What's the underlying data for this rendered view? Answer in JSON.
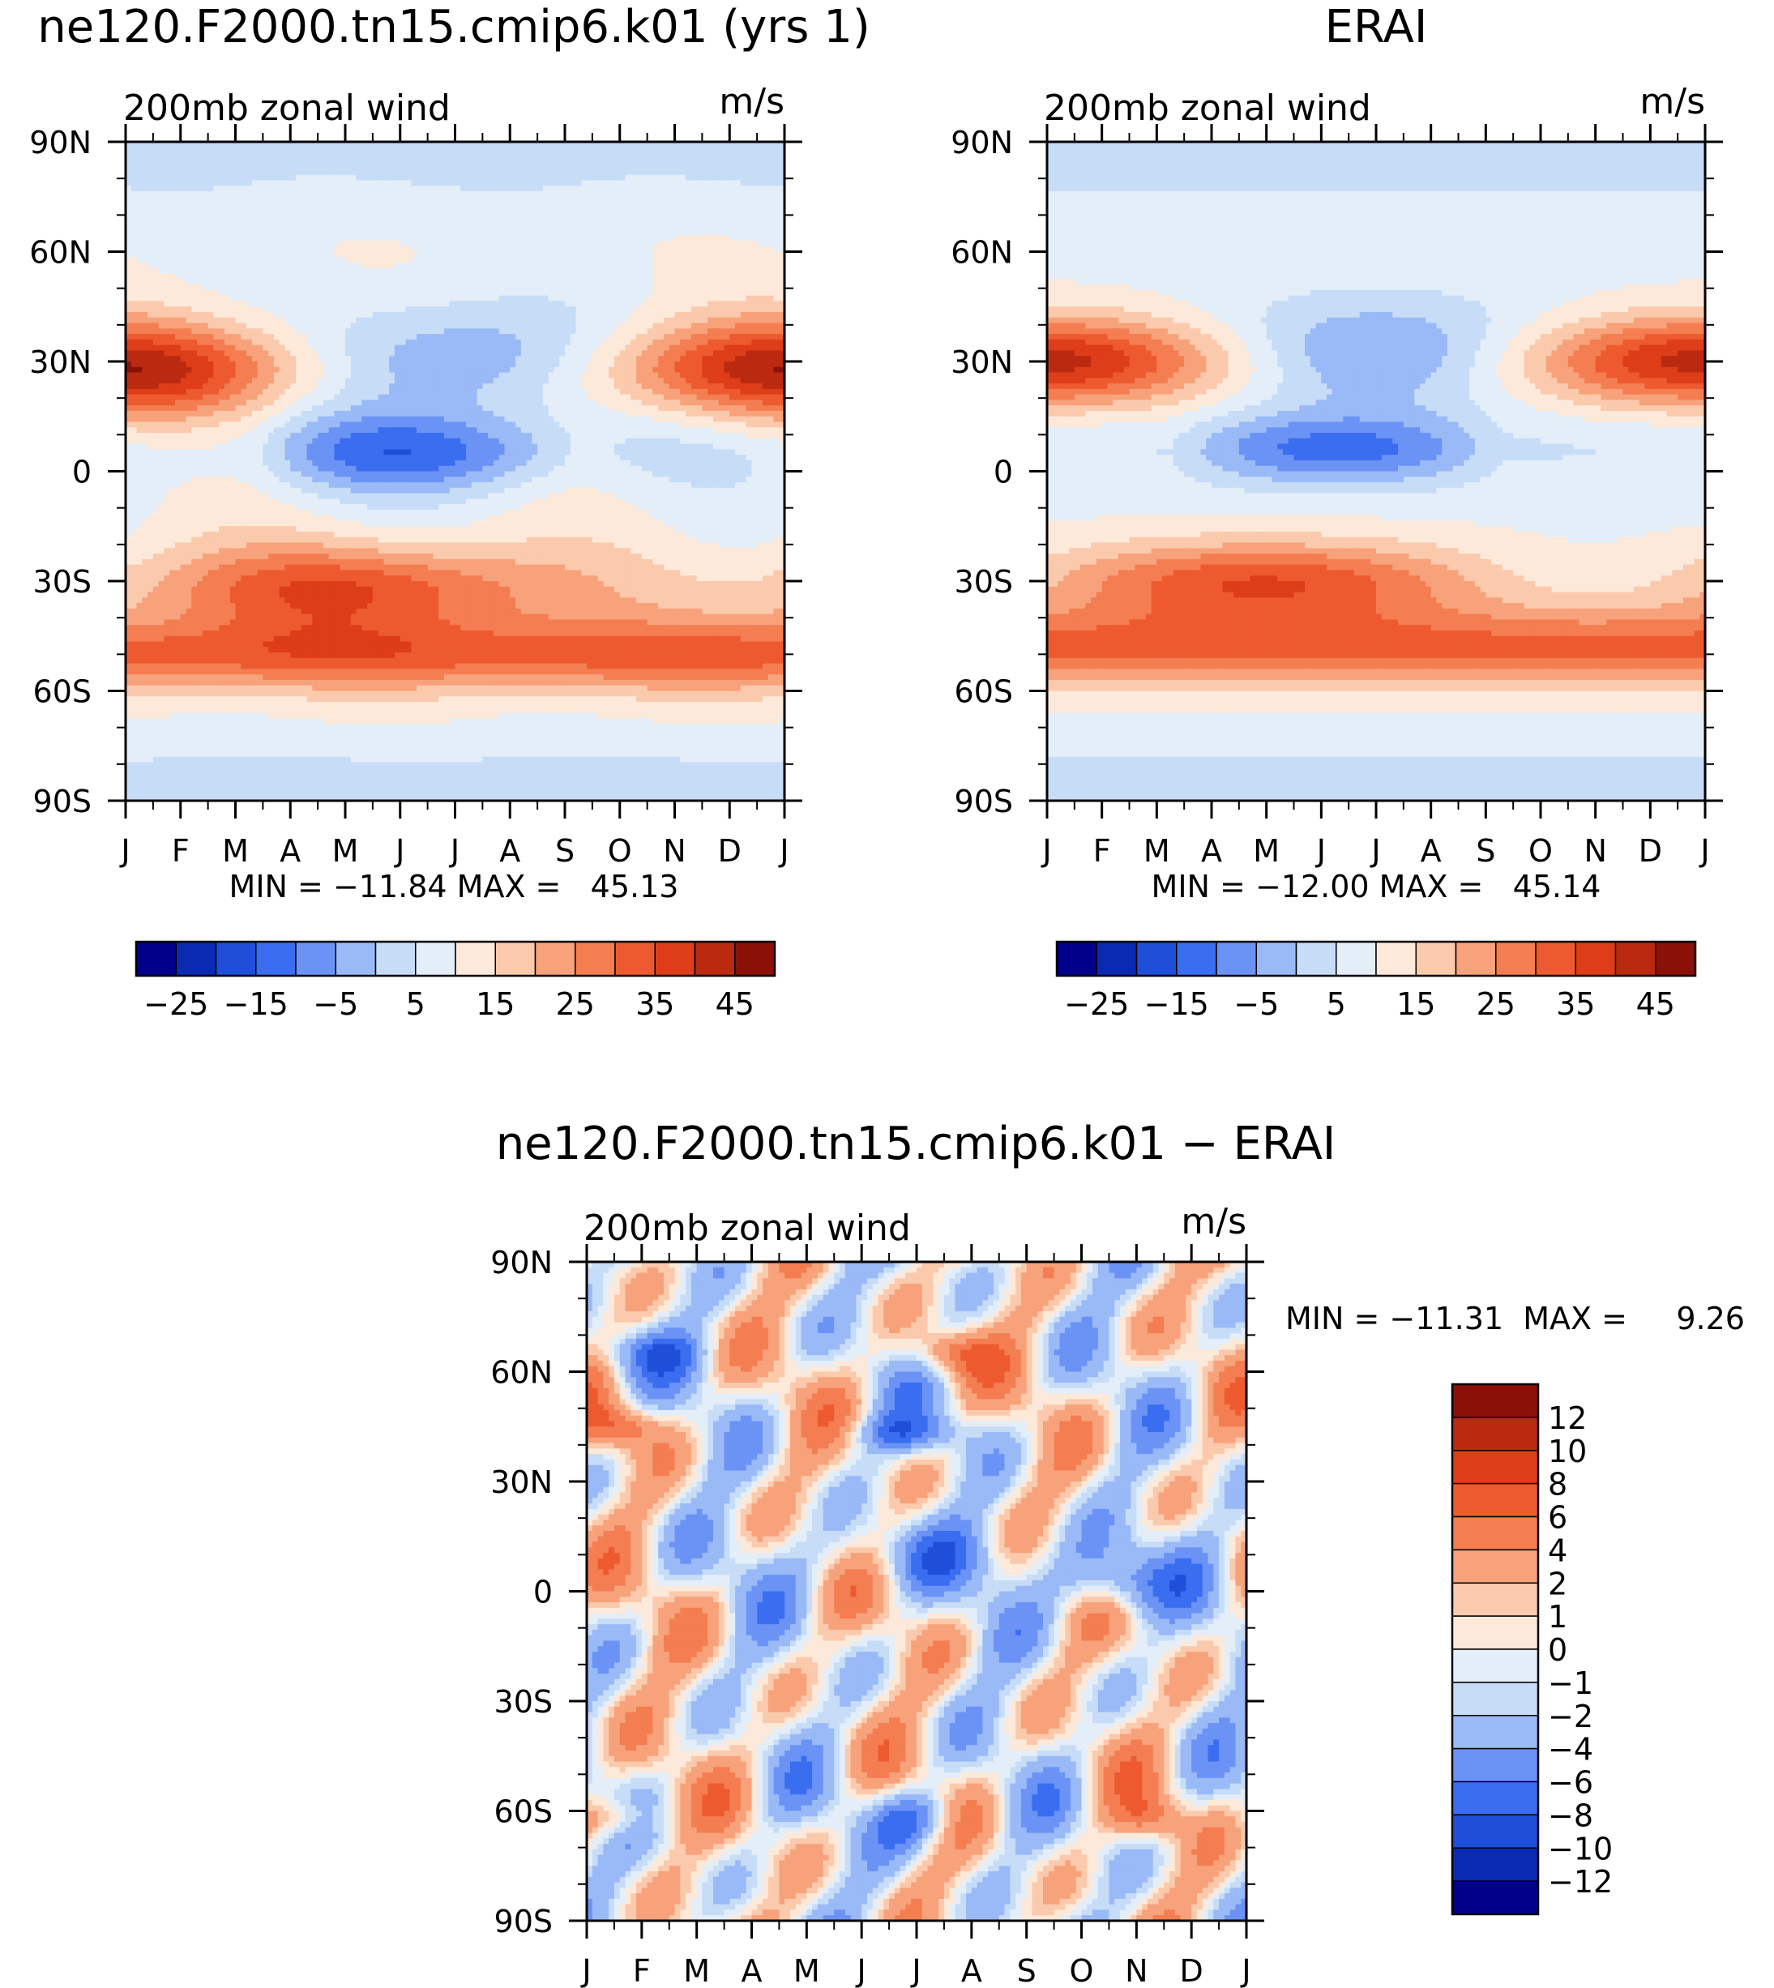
{
  "panels": [
    {
      "title": "ne120.F2000.tn15.cmip6.k01 (yrs 1)",
      "subtitle": "200mb zonal wind",
      "units": "m/s",
      "stats": "MIN = −11.84 MAX =   45.13"
    },
    {
      "title": "ERAI",
      "subtitle": "200mb zonal wind",
      "units": "m/s",
      "stats": "MIN = −12.00 MAX =   45.14"
    },
    {
      "title": "ne120.F2000.tn15.cmip6.k01 − ERAI",
      "subtitle": "200mb zonal wind",
      "units": "m/s",
      "stats": "MIN = −11.31  MAX =     9.26"
    }
  ],
  "chart_data": [
    {
      "type": "heatmap",
      "title": "ne120.F2000.tn15.cmip6.k01 (yrs 1)",
      "xlabel": "",
      "ylabel": "",
      "x_tick_labels": [
        "J",
        "F",
        "M",
        "A",
        "M",
        "J",
        "J",
        "A",
        "S",
        "O",
        "N",
        "D",
        "J"
      ],
      "y_tick_labels": [
        "90N",
        "60N",
        "30N",
        "0",
        "30S",
        "60S",
        "90S"
      ],
      "ylim": [
        -90,
        90
      ],
      "levels": [
        -30,
        -25,
        -20,
        -15,
        -10,
        -5,
        0,
        5,
        10,
        15,
        20,
        25,
        30,
        35,
        40,
        45,
        50
      ],
      "colorbar_labels": [
        "−25",
        "−15",
        "−5",
        "5",
        "15",
        "25",
        "35",
        "45"
      ],
      "colors": [
        "#00008b",
        "#0a2ab4",
        "#1f4fd8",
        "#3a6df0",
        "#6a93f5",
        "#9ab9f7",
        "#c6dcf7",
        "#e3eef9",
        "#fde9d9",
        "#fbc9ac",
        "#f7a27a",
        "#f47d52",
        "#ee5a2f",
        "#dd3d18",
        "#bb2a10",
        "#8b1108"
      ],
      "min": -11.84,
      "max": 45.13
    },
    {
      "type": "heatmap",
      "title": "ERAI",
      "xlabel": "",
      "ylabel": "",
      "x_tick_labels": [
        "J",
        "F",
        "M",
        "A",
        "M",
        "J",
        "J",
        "A",
        "S",
        "O",
        "N",
        "D",
        "J"
      ],
      "y_tick_labels": [
        "90N",
        "60N",
        "30N",
        "0",
        "30S",
        "60S",
        "90S"
      ],
      "ylim": [
        -90,
        90
      ],
      "levels": [
        -30,
        -25,
        -20,
        -15,
        -10,
        -5,
        0,
        5,
        10,
        15,
        20,
        25,
        30,
        35,
        40,
        45,
        50
      ],
      "colorbar_labels": [
        "−25",
        "−15",
        "−5",
        "5",
        "15",
        "25",
        "35",
        "45"
      ],
      "colors": [
        "#00008b",
        "#0a2ab4",
        "#1f4fd8",
        "#3a6df0",
        "#6a93f5",
        "#9ab9f7",
        "#c6dcf7",
        "#e3eef9",
        "#fde9d9",
        "#fbc9ac",
        "#f7a27a",
        "#f47d52",
        "#ee5a2f",
        "#dd3d18",
        "#bb2a10",
        "#8b1108"
      ],
      "min": -12.0,
      "max": 45.14
    },
    {
      "type": "heatmap",
      "title": "ne120.F2000.tn15.cmip6.k01 − ERAI",
      "xlabel": "",
      "ylabel": "",
      "x_tick_labels": [
        "J",
        "F",
        "M",
        "A",
        "M",
        "J",
        "J",
        "A",
        "S",
        "O",
        "N",
        "D",
        "J"
      ],
      "y_tick_labels": [
        "90N",
        "60N",
        "30N",
        "0",
        "30S",
        "60S",
        "90S"
      ],
      "ylim": [
        -90,
        90
      ],
      "levels": [
        -14,
        -12,
        -10,
        -8,
        -6,
        -4,
        -2,
        -1,
        0,
        1,
        2,
        4,
        6,
        8,
        10,
        12,
        14
      ],
      "colorbar_labels": [
        "12",
        "10",
        "8",
        "6",
        "4",
        "2",
        "1",
        "0",
        "−1",
        "−2",
        "−4",
        "−6",
        "−8",
        "−10",
        "−12"
      ],
      "colors": [
        "#00008b",
        "#0a2ab4",
        "#1f4fd8",
        "#3a6df0",
        "#6a93f5",
        "#9ab9f7",
        "#c6dcf7",
        "#e3eef9",
        "#fde9d9",
        "#fbc9ac",
        "#f7a27a",
        "#f47d52",
        "#ee5a2f",
        "#dd3d18",
        "#bb2a10",
        "#8b1108"
      ],
      "min": -11.31,
      "max": 9.26
    }
  ]
}
